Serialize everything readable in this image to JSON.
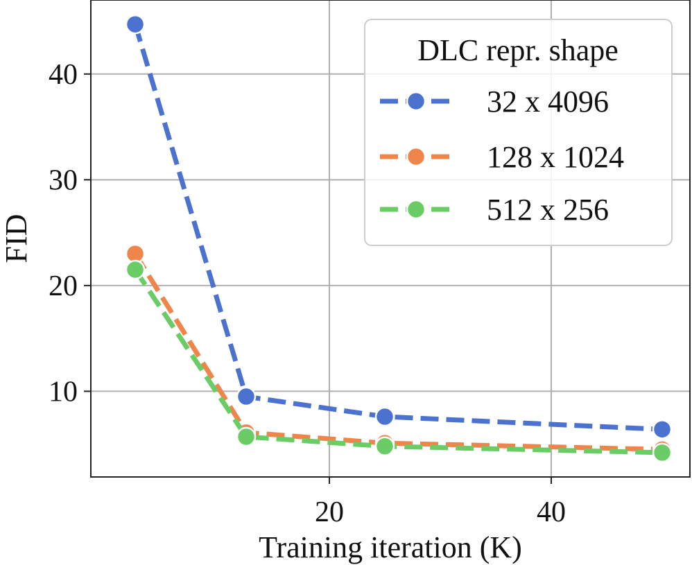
{
  "chart_data": {
    "type": "line",
    "title": "",
    "xlabel": "Training iteration (K)",
    "ylabel": "FID",
    "x": [
      2.5,
      12.5,
      25,
      50
    ],
    "xlim": [
      -1.5,
      52.5
    ],
    "ylim": [
      1.9,
      47.0
    ],
    "xticks": [
      20,
      40
    ],
    "yticks": [
      10,
      20,
      30,
      40
    ],
    "grid": true,
    "legend": {
      "title": "DLC repr. shape",
      "placement": "top-right"
    },
    "series": [
      {
        "name": "32 x 4096",
        "color": "#4c72d0",
        "values": [
          44.7,
          9.5,
          7.6,
          6.4
        ]
      },
      {
        "name": "128 x 1024",
        "color": "#ee854a",
        "values": [
          23.0,
          6.1,
          5.1,
          4.5
        ]
      },
      {
        "name": "512 x 256",
        "color": "#6acc64",
        "values": [
          21.5,
          5.7,
          4.8,
          4.2
        ]
      }
    ]
  }
}
